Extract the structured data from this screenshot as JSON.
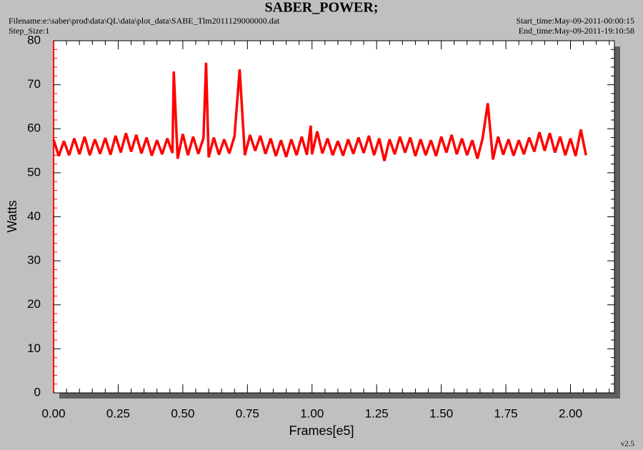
{
  "chart_data": {
    "type": "line",
    "title": "SABER_POWER;",
    "filename": "Filename:e:\\saber\\prod\\data\\QL\\data\\plot_data\\SABE_Tlm2011129000000.dat",
    "step_size": "Step_Size:1",
    "start_time": "Start_time:May-09-2011-00:00:15",
    "end_time": "End_time:May-09-2011-19:10:58",
    "version": "v2.5",
    "xlabel": "Frames[e5]",
    "ylabel": "Watts",
    "xlim": [
      0,
      2.17
    ],
    "ylim": [
      0,
      80
    ],
    "xticks": [
      {
        "value": 0,
        "label": "0.00"
      },
      {
        "value": 0.25,
        "label": "0.25"
      },
      {
        "value": 0.5,
        "label": "0.50"
      },
      {
        "value": 0.75,
        "label": "0.75"
      },
      {
        "value": 1,
        "label": "1.00"
      },
      {
        "value": 1.25,
        "label": "1.25"
      },
      {
        "value": 1.5,
        "label": "1.50"
      },
      {
        "value": 1.75,
        "label": "1.75"
      },
      {
        "value": 2,
        "label": "2.00"
      }
    ],
    "yticks": [
      0,
      10,
      20,
      30,
      40,
      50,
      60,
      70,
      80
    ],
    "series": [
      {
        "color": "#ff0000",
        "x": [
          0,
          0.02,
          0.04,
          0.06,
          0.08,
          0.1,
          0.12,
          0.14,
          0.16,
          0.18,
          0.2,
          0.22,
          0.24,
          0.26,
          0.28,
          0.3,
          0.32,
          0.34,
          0.36,
          0.38,
          0.4,
          0.42,
          0.44,
          0.46,
          0.465,
          0.48,
          0.5,
          0.52,
          0.54,
          0.56,
          0.58,
          0.59,
          0.6,
          0.62,
          0.64,
          0.66,
          0.68,
          0.7,
          0.72,
          0.74,
          0.76,
          0.78,
          0.8,
          0.82,
          0.84,
          0.86,
          0.88,
          0.9,
          0.92,
          0.94,
          0.96,
          0.98,
          0.995,
          1.0,
          1.02,
          1.04,
          1.06,
          1.08,
          1.1,
          1.12,
          1.14,
          1.16,
          1.18,
          1.2,
          1.22,
          1.24,
          1.26,
          1.28,
          1.3,
          1.32,
          1.34,
          1.36,
          1.38,
          1.4,
          1.42,
          1.44,
          1.46,
          1.48,
          1.5,
          1.52,
          1.54,
          1.56,
          1.58,
          1.6,
          1.62,
          1.64,
          1.66,
          1.68,
          1.7,
          1.72,
          1.74,
          1.76,
          1.78,
          1.8,
          1.82,
          1.84,
          1.86,
          1.88,
          1.9,
          1.92,
          1.94,
          1.96,
          1.98,
          2.0,
          2.02,
          2.04,
          2.06
        ],
        "values": [
          57.5,
          53.8,
          57.2,
          54.0,
          57.8,
          54.2,
          58.2,
          54.0,
          57.6,
          54.3,
          57.9,
          54.1,
          58.4,
          54.6,
          59.0,
          54.8,
          58.6,
          54.4,
          58.0,
          53.9,
          57.4,
          54.2,
          57.8,
          54.5,
          73.0,
          53.2,
          58.8,
          54.0,
          58.2,
          54.3,
          57.9,
          75.0,
          53.5,
          58.0,
          54.1,
          57.6,
          54.4,
          58.3,
          73.5,
          54.0,
          58.6,
          55.0,
          58.4,
          54.3,
          57.8,
          53.8,
          57.4,
          53.6,
          57.6,
          54.0,
          58.2,
          54.1,
          60.7,
          54.2,
          59.4,
          54.4,
          57.8,
          54.0,
          57.2,
          53.9,
          57.6,
          54.3,
          58.0,
          54.5,
          58.4,
          54.0,
          57.8,
          52.7,
          57.6,
          54.2,
          58.2,
          54.6,
          58.0,
          53.8,
          57.6,
          54.0,
          57.4,
          53.8,
          58.2,
          54.6,
          58.6,
          54.2,
          57.8,
          54.0,
          57.4,
          53.2,
          57.8,
          65.8,
          53.0,
          58.2,
          54.1,
          57.6,
          53.9,
          57.4,
          54.2,
          58.0,
          54.8,
          59.2,
          55.0,
          59.0,
          54.6,
          58.2,
          54.0,
          57.8,
          53.8,
          59.8,
          54.0
        ]
      }
    ]
  }
}
